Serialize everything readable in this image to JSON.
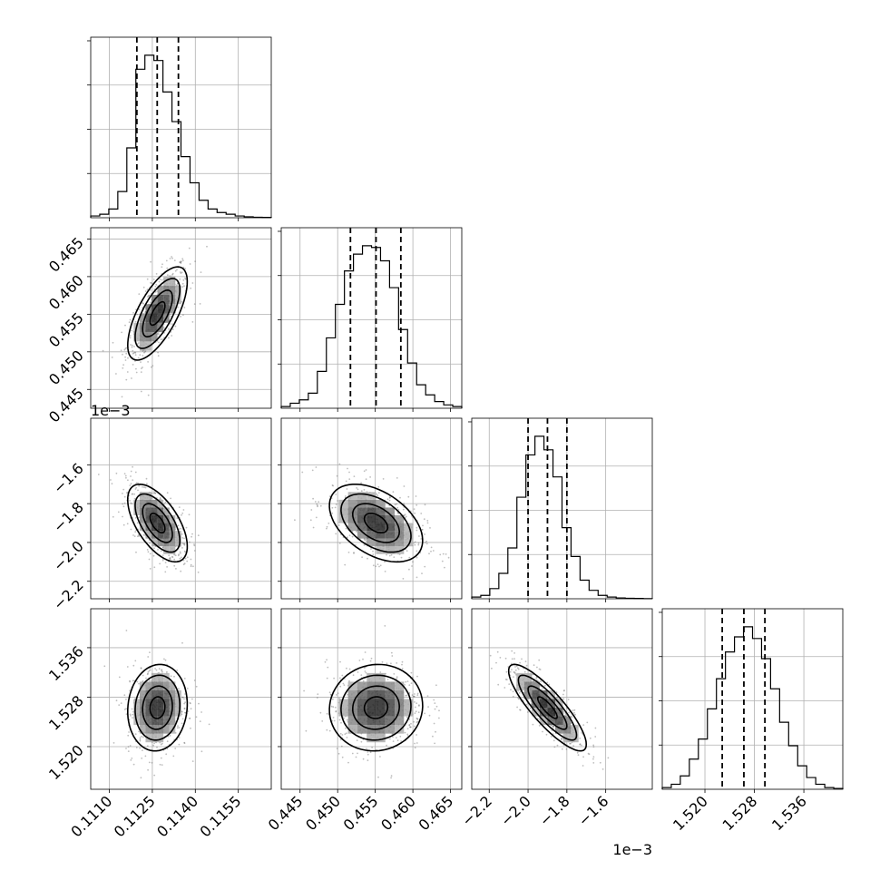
{
  "chart_data": {
    "type": "corner",
    "grid": true,
    "parameters": [
      {
        "range": [
          0.11035,
          0.11665
        ],
        "ticks": [
          0.111,
          0.1125,
          0.114,
          0.1155
        ],
        "tick_labels": [
          "0.1110",
          "0.1125",
          "0.1140",
          "0.1155"
        ],
        "offset_label": "",
        "mean": 0.11268,
        "std": 0.00052,
        "quantiles": [
          0.11196,
          0.11267,
          0.11341
        ],
        "hist": [
          1,
          2,
          5,
          15,
          40,
          85,
          93,
          90,
          72,
          55,
          35,
          20,
          10,
          5,
          3,
          2,
          1,
          0.5,
          0.3,
          0.2
        ]
      },
      {
        "range": [
          0.4425,
          0.4665
        ],
        "ticks": [
          0.445,
          0.45,
          0.455,
          0.46,
          0.465
        ],
        "tick_labels": [
          "0.445",
          "0.450",
          "0.455",
          "0.460",
          "0.465"
        ],
        "offset_label": "",
        "mean": 0.4551,
        "std": 0.0031,
        "quantiles": [
          0.4517,
          0.4551,
          0.4584
        ],
        "hist": [
          1,
          3,
          5,
          9,
          22,
          42,
          62,
          82,
          92,
          97,
          96,
          88,
          72,
          47,
          27,
          14,
          8,
          4,
          2,
          1
        ]
      },
      {
        "range": [
          -2.29,
          -1.36
        ],
        "ticks": [
          -2.2,
          -2.0,
          -1.8,
          -1.6
        ],
        "tick_labels": [
          "−2.2",
          "−2.0",
          "−1.8",
          "−1.6"
        ],
        "offset_label": "1e−3",
        "mean": -1.9,
        "std": 0.1,
        "quantiles": [
          -2.0,
          -1.9,
          -1.8
        ],
        "hist": [
          1,
          2,
          6,
          15,
          30,
          60,
          85,
          96,
          88,
          72,
          42,
          25,
          11,
          5,
          2,
          1,
          0.5,
          0.3,
          0.2,
          0.1
        ]
      },
      {
        "range": [
          1.5131,
          1.5423
        ],
        "ticks": [
          1.52,
          1.528,
          1.536
        ],
        "tick_labels": [
          "1.520",
          "1.528",
          "1.536"
        ],
        "offset_label": "",
        "mean": 1.5263,
        "std": 0.0035,
        "quantiles": [
          1.5228,
          1.5263,
          1.5297
        ],
        "hist": [
          1,
          3,
          8,
          18,
          30,
          48,
          66,
          82,
          91,
          97,
          90,
          78,
          60,
          40,
          26,
          14,
          7,
          3,
          1,
          0.5
        ]
      }
    ],
    "correlations": {
      "1-0": 0.68,
      "2-0": -0.6,
      "2-1": -0.45,
      "3-0": 0.08,
      "3-1": 0.05,
      "3-2": -0.85
    }
  }
}
